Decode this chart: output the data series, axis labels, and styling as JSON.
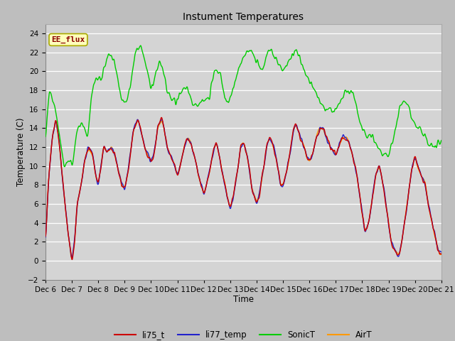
{
  "title": "Instument Temperatures",
  "xlabel": "Time",
  "ylabel": "Temperature (C)",
  "ylim": [
    -2,
    25
  ],
  "xlim": [
    0,
    15
  ],
  "annotation": "EE_flux",
  "fig_bg": "#c0c0c0",
  "plot_bg": "#d8d8d8",
  "legend": [
    "li75_t",
    "li77_temp",
    "SonicT",
    "AirT"
  ],
  "colors": [
    "#cc0000",
    "#2222cc",
    "#00cc00",
    "#ff9900"
  ],
  "xtick_labels": [
    "Dec 6",
    "Dec 7",
    "Dec 8",
    "Dec 9",
    "Dec 10",
    "Dec 11",
    "Dec 12",
    "Dec 13",
    "Dec 14",
    "Dec 15",
    "Dec 16",
    "Dec 17",
    "Dec 18",
    "Dec 19",
    "Dec 20",
    "Dec 21"
  ],
  "xtick_positions": [
    0,
    1,
    2,
    3,
    4,
    5,
    6,
    7,
    8,
    9,
    10,
    11,
    12,
    13,
    14,
    15
  ]
}
